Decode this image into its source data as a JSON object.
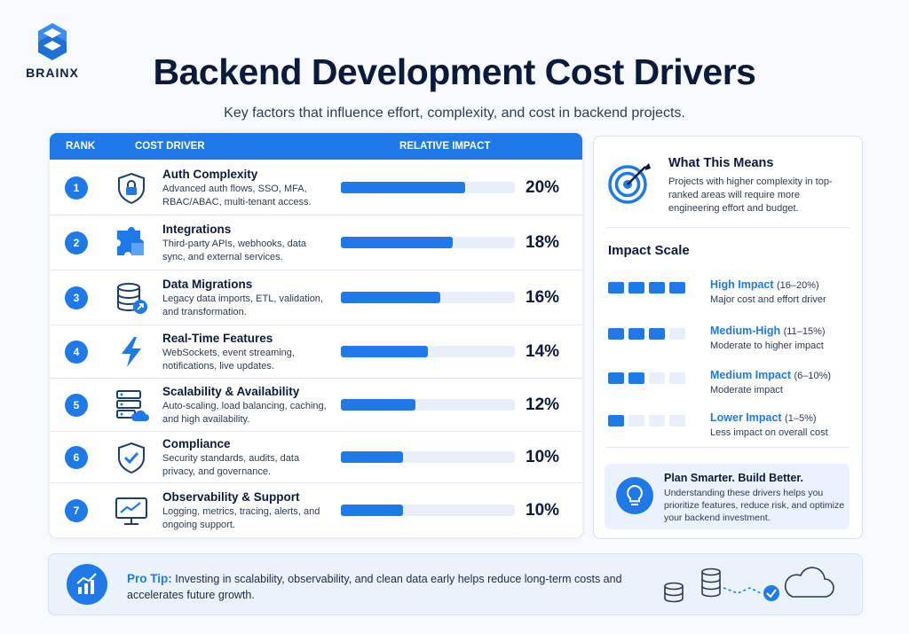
{
  "brand": {
    "name": "BRAINX"
  },
  "header": {
    "title": "Backend Development Cost Drivers",
    "subtitle": "Key factors that influence effort, complexity, and cost in backend projects."
  },
  "table": {
    "col_rank": "RANK",
    "col_driver": "COST DRIVER",
    "col_impact": "RELATIVE IMPACT"
  },
  "chart_data": {
    "type": "bar",
    "categories": [
      "Auth Complexity",
      "Integrations",
      "Data Migrations",
      "Real-Time Features",
      "Scalability & Availability",
      "Compliance",
      "Observability & Support"
    ],
    "values": [
      20,
      18,
      16,
      14,
      12,
      10,
      10
    ],
    "value_labels": [
      "20%",
      "18%",
      "16%",
      "14%",
      "12%",
      "10%",
      "10%"
    ],
    "ranks": [
      "1",
      "2",
      "3",
      "4",
      "5",
      "6",
      "7"
    ],
    "descriptions": [
      "Advanced auth flows, SSO, MFA, RBAC/ABAC, multi-tenant access.",
      "Third-party APIs, webhooks, data sync, and external services.",
      "Legacy data imports, ETL, validation, and transformation.",
      "WebSockets, event streaming, notifications, live updates.",
      "Auto-scaling, load balancing, caching, and high availability.",
      "Security standards, audits, data privacy, and governance.",
      "Logging, metrics, tracing, alerts, and ongoing support."
    ],
    "icons": [
      "shield-lock-icon",
      "puzzle-icon",
      "database-icon",
      "lightning-icon",
      "server-cloud-icon",
      "shield-check-icon",
      "monitor-chart-icon"
    ],
    "title": "",
    "xlabel": "",
    "ylabel": "",
    "ylim": [
      0,
      28
    ],
    "grid": false,
    "legend": "none"
  },
  "side": {
    "means_title": "What This Means",
    "means_text": "Projects with higher complexity in top-ranked areas will require more engineering effort and budget.",
    "scale_title": "Impact Scale",
    "scale": [
      {
        "label": "High Impact",
        "range": "(16–20%)",
        "desc": "Major cost and effort driver",
        "level": 4
      },
      {
        "label": "Medium-High",
        "range": "(11–15%)",
        "desc": "Moderate to higher impact",
        "level": 3
      },
      {
        "label": "Medium Impact",
        "range": "(6–10%)",
        "desc": "Moderate impact",
        "level": 2
      },
      {
        "label": "Lower Impact",
        "range": "(1–5%)",
        "desc": "Less impact on overall cost",
        "level": 1
      }
    ],
    "smart_title": "Plan Smarter. Build Better.",
    "smart_text": "Understanding these drivers helps you prioritize features, reduce risk, and optimize your backend investment."
  },
  "tip": {
    "label": "Pro Tip:",
    "text": "Investing in scalability, observability, and clean data early helps reduce long-term costs and accelerates future growth."
  },
  "colors": {
    "accent": "#1f7ae8",
    "track": "#e8eff8",
    "dark": "#0b1a3a",
    "panel_bg": "#e9f2fd"
  }
}
